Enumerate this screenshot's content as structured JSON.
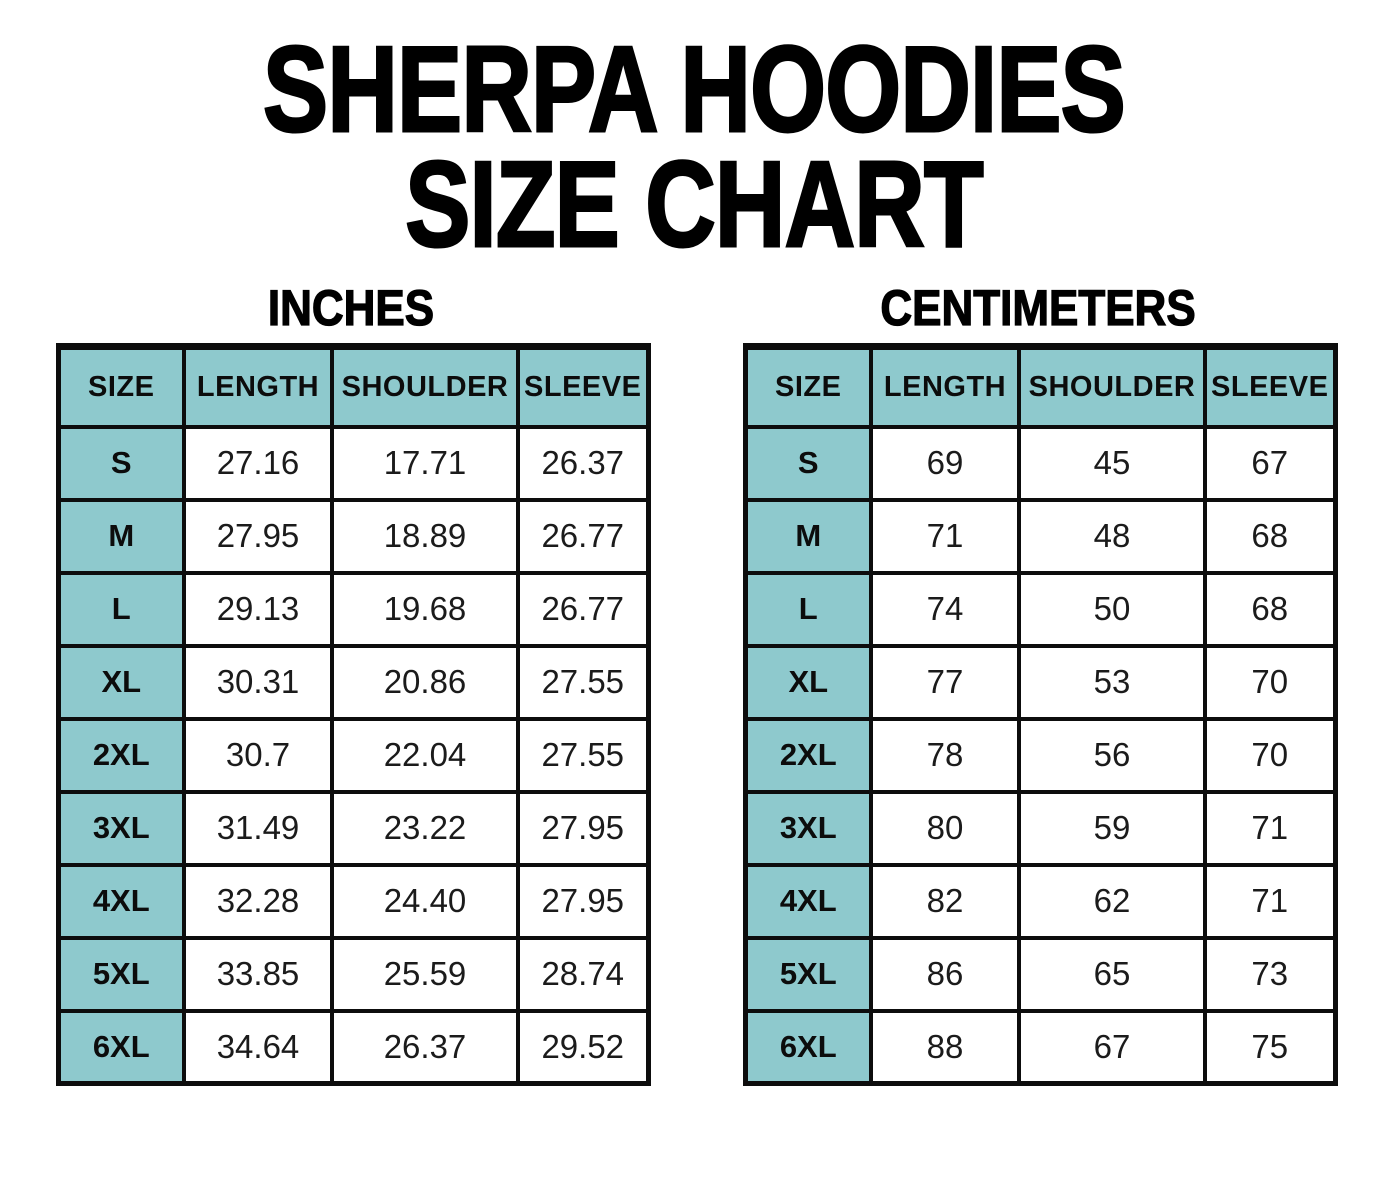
{
  "title": {
    "line1": "SHERPA HOODIES",
    "line2": "SIZE CHART"
  },
  "colors": {
    "background": "#ffffff",
    "header_fill": "#8ec9cd",
    "border": "#0d0d0d",
    "text": "#000000"
  },
  "tables": [
    {
      "name": "inches",
      "heading": "INCHES",
      "columns": [
        "SIZE",
        "LENGTH",
        "SHOULDER",
        "SLEEVE"
      ],
      "rows": [
        {
          "size": "S",
          "values": [
            "27.16",
            "17.71",
            "26.37"
          ]
        },
        {
          "size": "M",
          "values": [
            "27.95",
            "18.89",
            "26.77"
          ]
        },
        {
          "size": "L",
          "values": [
            "29.13",
            "19.68",
            "26.77"
          ]
        },
        {
          "size": "XL",
          "values": [
            "30.31",
            "20.86",
            "27.55"
          ]
        },
        {
          "size": "2XL",
          "values": [
            "30.7",
            "22.04",
            "27.55"
          ]
        },
        {
          "size": "3XL",
          "values": [
            "31.49",
            "23.22",
            "27.95"
          ]
        },
        {
          "size": "4XL",
          "values": [
            "32.28",
            "24.40",
            "27.95"
          ]
        },
        {
          "size": "5XL",
          "values": [
            "33.85",
            "25.59",
            "28.74"
          ]
        },
        {
          "size": "6XL",
          "values": [
            "34.64",
            "26.37",
            "29.52"
          ]
        }
      ]
    },
    {
      "name": "centimeters",
      "heading": "CENTIMETERS",
      "columns": [
        "SIZE",
        "LENGTH",
        "SHOULDER",
        "SLEEVE"
      ],
      "rows": [
        {
          "size": "S",
          "values": [
            "69",
            "45",
            "67"
          ]
        },
        {
          "size": "M",
          "values": [
            "71",
            "48",
            "68"
          ]
        },
        {
          "size": "L",
          "values": [
            "74",
            "50",
            "68"
          ]
        },
        {
          "size": "XL",
          "values": [
            "77",
            "53",
            "70"
          ]
        },
        {
          "size": "2XL",
          "values": [
            "78",
            "56",
            "70"
          ]
        },
        {
          "size": "3XL",
          "values": [
            "80",
            "59",
            "71"
          ]
        },
        {
          "size": "4XL",
          "values": [
            "82",
            "62",
            "71"
          ]
        },
        {
          "size": "5XL",
          "values": [
            "86",
            "65",
            "73"
          ]
        },
        {
          "size": "6XL",
          "values": [
            "88",
            "67",
            "75"
          ]
        }
      ]
    }
  ],
  "chart_data": [
    {
      "type": "table",
      "title": "INCHES",
      "columns": [
        "SIZE",
        "LENGTH",
        "SHOULDER",
        "SLEEVE"
      ],
      "rows": [
        [
          "S",
          27.16,
          17.71,
          26.37
        ],
        [
          "M",
          27.95,
          18.89,
          26.77
        ],
        [
          "L",
          29.13,
          19.68,
          26.77
        ],
        [
          "XL",
          30.31,
          20.86,
          27.55
        ],
        [
          "2XL",
          30.7,
          22.04,
          27.55
        ],
        [
          "3XL",
          31.49,
          23.22,
          27.95
        ],
        [
          "4XL",
          32.28,
          24.4,
          27.95
        ],
        [
          "5XL",
          33.85,
          25.59,
          28.74
        ],
        [
          "6XL",
          34.64,
          26.37,
          29.52
        ]
      ]
    },
    {
      "type": "table",
      "title": "CENTIMETERS",
      "columns": [
        "SIZE",
        "LENGTH",
        "SHOULDER",
        "SLEEVE"
      ],
      "rows": [
        [
          "S",
          69,
          45,
          67
        ],
        [
          "M",
          71,
          48,
          68
        ],
        [
          "L",
          74,
          50,
          68
        ],
        [
          "XL",
          77,
          53,
          70
        ],
        [
          "2XL",
          78,
          56,
          70
        ],
        [
          "3XL",
          80,
          59,
          71
        ],
        [
          "4XL",
          82,
          62,
          71
        ],
        [
          "5XL",
          86,
          65,
          73
        ],
        [
          "6XL",
          88,
          67,
          75
        ]
      ]
    }
  ]
}
